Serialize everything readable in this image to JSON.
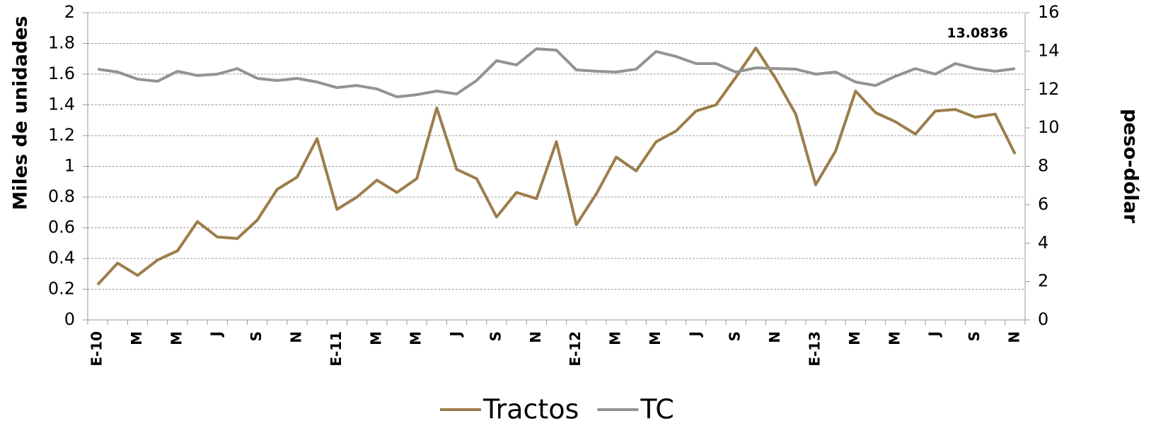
{
  "chart_data": {
    "type": "line",
    "categories": [
      "E-10",
      null,
      "M",
      null,
      "M",
      null,
      "J",
      null,
      "S",
      null,
      "N",
      null,
      "E-11",
      null,
      "M",
      null,
      "M",
      null,
      "J",
      null,
      "S",
      null,
      "N",
      null,
      "E-12",
      null,
      "M",
      null,
      "M",
      null,
      "J",
      null,
      "S",
      null,
      "N",
      null,
      "E-13",
      null,
      "M",
      null,
      "M",
      null,
      "J",
      null,
      "S",
      null,
      "N"
    ],
    "series": [
      {
        "name": "Tractos",
        "color": "#9c7d4a",
        "axis": "y",
        "values": [
          0.23,
          0.37,
          0.29,
          0.39,
          0.45,
          0.64,
          0.54,
          0.53,
          0.65,
          0.85,
          0.93,
          1.18,
          0.72,
          0.8,
          0.91,
          0.83,
          0.92,
          1.38,
          0.98,
          0.92,
          0.67,
          0.83,
          0.79,
          1.16,
          0.62,
          0.82,
          1.06,
          0.97,
          1.16,
          1.23,
          1.36,
          1.4,
          1.58,
          1.77,
          1.57,
          1.34,
          0.88,
          1.1,
          1.49,
          1.35,
          1.29,
          1.21,
          1.36,
          1.37,
          1.32,
          1.34,
          1.08
        ]
      },
      {
        "name": "TC",
        "color": "#939393",
        "axis": "y2",
        "values": [
          13.06,
          12.91,
          12.54,
          12.43,
          12.95,
          12.73,
          12.8,
          13.09,
          12.58,
          12.47,
          12.58,
          12.39,
          12.1,
          12.21,
          12.03,
          11.62,
          11.73,
          11.92,
          11.77,
          12.47,
          13.5,
          13.28,
          14.12,
          14.05,
          13.02,
          12.95,
          12.91,
          13.06,
          13.98,
          13.72,
          13.35,
          13.35,
          12.91,
          13.13,
          13.09,
          13.06,
          12.8,
          12.91,
          12.39,
          12.21,
          12.69,
          13.09,
          12.8,
          13.35,
          13.09,
          12.95,
          13.0836
        ],
        "value_labels": [
          null,
          null,
          null,
          null,
          null,
          null,
          null,
          null,
          null,
          null,
          null,
          null,
          null,
          null,
          null,
          null,
          null,
          null,
          null,
          null,
          null,
          null,
          null,
          null,
          null,
          null,
          null,
          null,
          null,
          null,
          null,
          null,
          null,
          null,
          null,
          null,
          null,
          null,
          null,
          null,
          null,
          null,
          null,
          null,
          null,
          null,
          "13.0836"
        ]
      }
    ],
    "ylabel": "Miles de unidades",
    "y2label": "peso-dólar",
    "ylim": [
      0,
      2
    ],
    "yticks": [
      0,
      0.2,
      0.4,
      0.6,
      0.8,
      1,
      1.2,
      1.4,
      1.6,
      1.8,
      2
    ],
    "y2lim": [
      0,
      16
    ],
    "y2ticks": [
      0,
      2,
      4,
      6,
      8,
      10,
      12,
      14,
      16
    ],
    "grid": true,
    "legend": "bottom"
  }
}
